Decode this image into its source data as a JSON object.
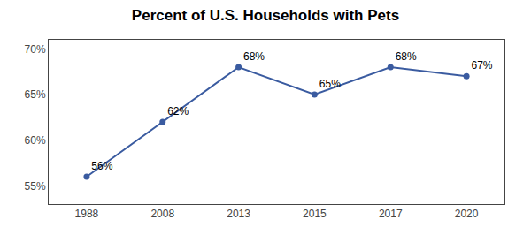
{
  "chart_data": {
    "type": "line",
    "title": "Percent of U.S. Households with Pets",
    "categories": [
      "1988",
      "2008",
      "2013",
      "2015",
      "2017",
      "2020"
    ],
    "values": [
      56,
      62,
      68,
      65,
      68,
      67
    ],
    "value_labels": [
      "56%",
      "62%",
      "68%",
      "65%",
      "68%",
      "67%"
    ],
    "data_labels": true,
    "color": "#3a5ba0",
    "marker": "circle",
    "ylim": [
      53,
      71
    ],
    "yticks": [
      {
        "value": 55,
        "label": "55%"
      },
      {
        "value": 60,
        "label": "60%"
      },
      {
        "value": 65,
        "label": "65%"
      },
      {
        "value": 70,
        "label": "70%"
      }
    ],
    "grid": true
  }
}
